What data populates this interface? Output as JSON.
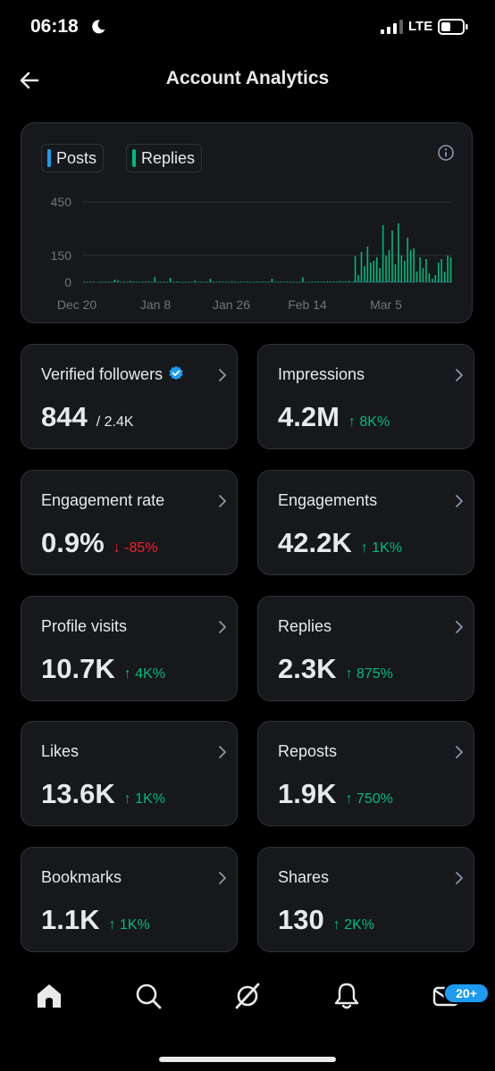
{
  "status_bar": {
    "time": "06:18",
    "network": "LTE"
  },
  "header": {
    "title": "Account Analytics"
  },
  "chart": {
    "legend": [
      {
        "label": "Posts",
        "color": "#1d9bf0"
      },
      {
        "label": "Replies",
        "color": "#00ba7c"
      }
    ]
  },
  "chart_data": {
    "type": "bar",
    "y_ticks": [
      450,
      150,
      0
    ],
    "ylim": [
      0,
      450
    ],
    "x_tick_labels": [
      "Dec 20",
      "Jan 8",
      "Jan 26",
      "Feb 14",
      "Mar 5"
    ],
    "series": [
      {
        "name": "Posts",
        "color": "#1d9bf0",
        "values": [
          0,
          0,
          0,
          0,
          0,
          0,
          0,
          0,
          0,
          0,
          0,
          0,
          0,
          0,
          0,
          0,
          0,
          0,
          0,
          0,
          0,
          0,
          0,
          0,
          0,
          0,
          0,
          0,
          0,
          0,
          0,
          0,
          0,
          0,
          0,
          0,
          0,
          0,
          0,
          0,
          0,
          0,
          0,
          0,
          0,
          0,
          0,
          0,
          0,
          0,
          0,
          0,
          0,
          0,
          0,
          0,
          0,
          0,
          0,
          0,
          0,
          0,
          0,
          0,
          0,
          0,
          0,
          0,
          0,
          0,
          0,
          0,
          0,
          0,
          0,
          0,
          0,
          0,
          0,
          0,
          0,
          0,
          0,
          0,
          0,
          0,
          0,
          0,
          2,
          3,
          4,
          2,
          3,
          2,
          3,
          4,
          3,
          2,
          3,
          4,
          3,
          2,
          3,
          2,
          3,
          4,
          3,
          2,
          0,
          0,
          0,
          0,
          0,
          0,
          3,
          2,
          4,
          3,
          2,
          5
        ]
      },
      {
        "name": "Replies",
        "color": "#00ba7c",
        "values": [
          3,
          2,
          4,
          3,
          0,
          2,
          3,
          4,
          2,
          3,
          15,
          12,
          3,
          4,
          2,
          8,
          5,
          3,
          2,
          4,
          3,
          6,
          2,
          30,
          3,
          2,
          4,
          3,
          25,
          2,
          5,
          3,
          2,
          4,
          3,
          2,
          10,
          3,
          4,
          2,
          3,
          20,
          2,
          3,
          5,
          4,
          3,
          2,
          6,
          3,
          2,
          4,
          3,
          5,
          2,
          3,
          4,
          2,
          5,
          3,
          4,
          20,
          3,
          2,
          4,
          3,
          5,
          3,
          4,
          2,
          3,
          28,
          2,
          3,
          4,
          3,
          5,
          4,
          3,
          6,
          4,
          5,
          3,
          8,
          4,
          6,
          8,
          3,
          145,
          40,
          170,
          90,
          200,
          110,
          120,
          140,
          80,
          320,
          150,
          180,
          290,
          100,
          330,
          150,
          120,
          250,
          180,
          190,
          60,
          140,
          80,
          130,
          50,
          20,
          40,
          110,
          130,
          60,
          150,
          140
        ]
      }
    ]
  },
  "stats": [
    {
      "label": "Verified followers",
      "value": "844",
      "change": "/ 2.4K",
      "direction": "neutral",
      "verified": true
    },
    {
      "label": "Impressions",
      "value": "4.2M",
      "change": "↑ 8K%",
      "direction": "up"
    },
    {
      "label": "Engagement rate",
      "value": "0.9%",
      "change": "↓ -85%",
      "direction": "down"
    },
    {
      "label": "Engagements",
      "value": "42.2K",
      "change": "↑ 1K%",
      "direction": "up"
    },
    {
      "label": "Profile visits",
      "value": "10.7K",
      "change": "↑ 4K%",
      "direction": "up"
    },
    {
      "label": "Replies",
      "value": "2.3K",
      "change": "↑ 875%",
      "direction": "up"
    },
    {
      "label": "Likes",
      "value": "13.6K",
      "change": "↑ 1K%",
      "direction": "up"
    },
    {
      "label": "Reposts",
      "value": "1.9K",
      "change": "↑ 750%",
      "direction": "up"
    },
    {
      "label": "Bookmarks",
      "value": "1.1K",
      "change": "↑ 1K%",
      "direction": "up"
    },
    {
      "label": "Shares",
      "value": "130",
      "change": "↑ 2K%",
      "direction": "up"
    }
  ],
  "tab_bar": {
    "tabs": [
      "home-icon",
      "search-icon",
      "grok-icon",
      "notifications-icon",
      "messages-icon"
    ],
    "messages_badge": "20+"
  }
}
